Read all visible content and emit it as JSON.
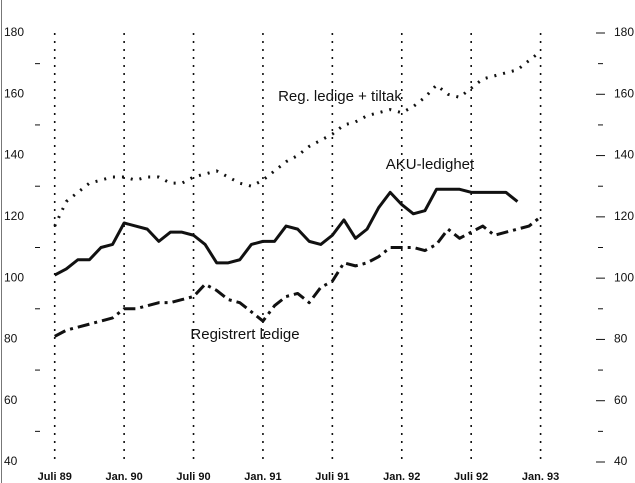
{
  "chart_data": {
    "type": "line",
    "xlim": [
      -3,
      48
    ],
    "xticks": [
      {
        "value": 0,
        "label": "Juli 89"
      },
      {
        "value": 6,
        "label": "Jan. 90"
      },
      {
        "value": 12,
        "label": "Juli 90"
      },
      {
        "value": 18,
        "label": "Jan. 91"
      },
      {
        "value": 24,
        "label": "Juli 91"
      },
      {
        "value": 30,
        "label": "Jan. 92"
      },
      {
        "value": 36,
        "label": "Juli 92"
      },
      {
        "value": 42,
        "label": "Jan. 93"
      }
    ],
    "ylim": [
      40,
      180
    ],
    "yticks": [
      40,
      60,
      80,
      100,
      120,
      140,
      160,
      180
    ],
    "yminorticks": [
      50,
      70,
      90,
      110,
      130,
      150,
      170
    ],
    "x": [
      0,
      1,
      2,
      3,
      4,
      5,
      6,
      7,
      8,
      9,
      10,
      11,
      12,
      13,
      14,
      15,
      16,
      17,
      18,
      19,
      20,
      21,
      22,
      23,
      24,
      25,
      26,
      27,
      28,
      29,
      30,
      31,
      32,
      33,
      34,
      35,
      36,
      37,
      38,
      39,
      40,
      41,
      42
    ],
    "series": [
      {
        "name": "Reg. ledige + tiltak",
        "color": "#111",
        "style": "dotted",
        "values": [
          117,
          125,
          128,
          131,
          132,
          133,
          133,
          132,
          133,
          133,
          131,
          131,
          133,
          134,
          135,
          133,
          131,
          130,
          132,
          135,
          138,
          140,
          143,
          145,
          147,
          150,
          151,
          153,
          154,
          155,
          154,
          156,
          159,
          163,
          160,
          159,
          162,
          165,
          166,
          167,
          168,
          171,
          174
        ]
      },
      {
        "name": "AKU-ledighet",
        "color": "#111",
        "style": "solid",
        "values": [
          101,
          103,
          106,
          106,
          110,
          111,
          118,
          117,
          116,
          112,
          115,
          115,
          114,
          111,
          105,
          105,
          106,
          111,
          112,
          112,
          117,
          116,
          112,
          111,
          114,
          119,
          113,
          116,
          123,
          128,
          124,
          121,
          122,
          129,
          129,
          129,
          128,
          128,
          128,
          128,
          125,
          null,
          null
        ]
      },
      {
        "name": "Registrert ledige",
        "color": "#111",
        "style": "dashdot",
        "values": [
          81,
          83,
          84,
          85,
          86,
          87,
          90,
          90,
          91,
          92,
          92,
          93,
          94,
          98,
          96,
          93,
          92,
          89,
          86,
          91,
          94,
          95,
          92,
          97,
          99,
          105,
          104,
          105,
          107,
          110,
          110,
          110,
          109,
          111,
          116,
          113,
          115,
          117,
          114,
          115,
          116,
          117,
          120
        ]
      }
    ]
  }
}
